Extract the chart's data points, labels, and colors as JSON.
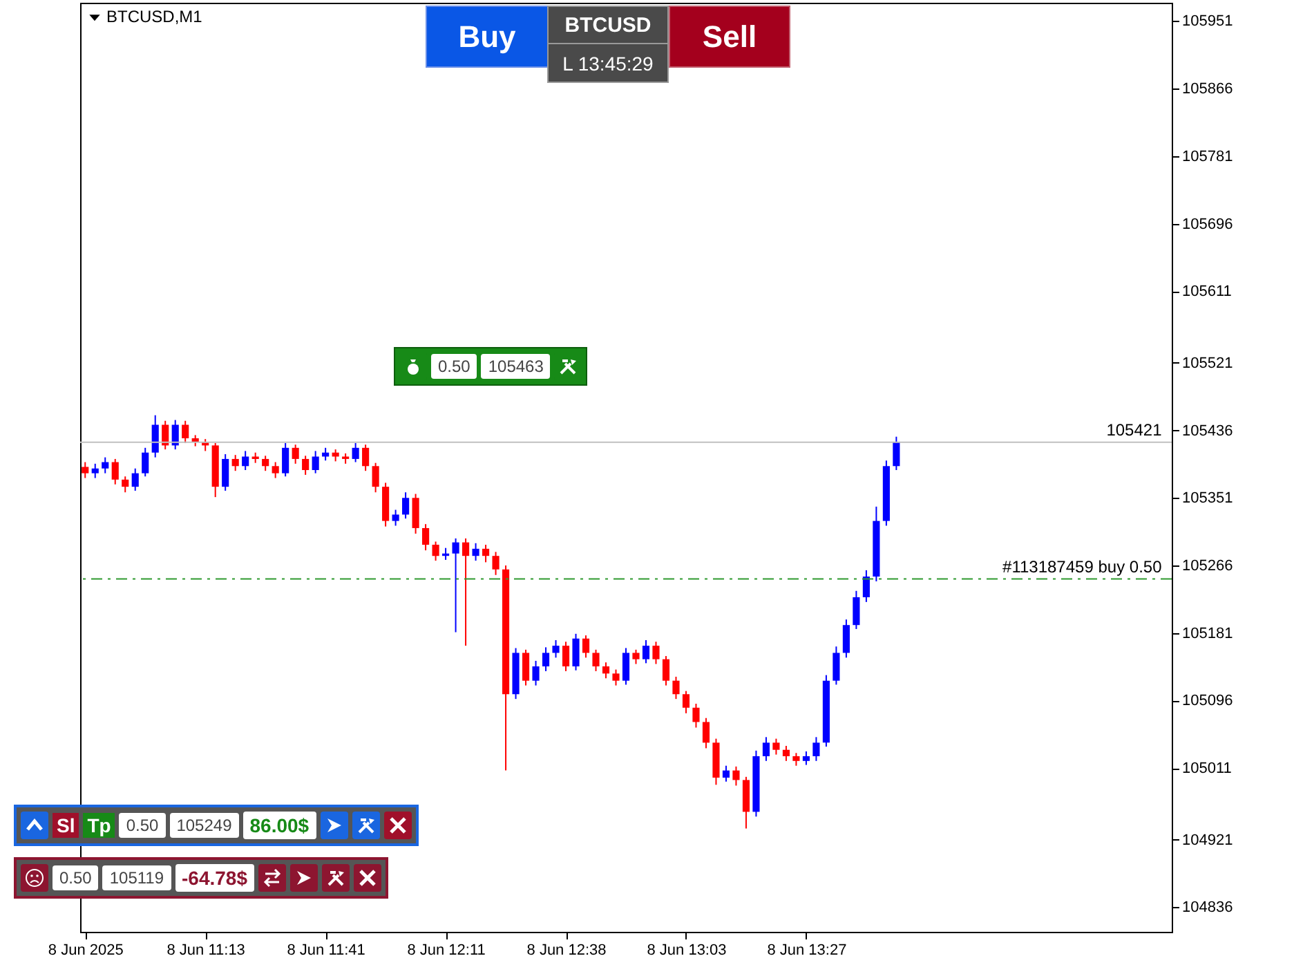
{
  "chart_data": {
    "type": "candlestick",
    "title": "BTCUSD,M1",
    "categories": [
      "8 Jun 2025",
      null,
      null,
      null,
      null,
      null,
      null,
      null,
      null,
      null,
      null,
      null,
      "8 Jun 11:13",
      null,
      null,
      null,
      null,
      null,
      null,
      null,
      null,
      null,
      null,
      null,
      "8 Jun 11:41",
      null,
      null,
      null,
      null,
      null,
      null,
      null,
      null,
      null,
      null,
      null,
      "8 Jun 12:11",
      null,
      null,
      null,
      null,
      null,
      null,
      null,
      null,
      null,
      null,
      null,
      "8 Jun 12:38",
      null,
      null,
      null,
      null,
      null,
      null,
      null,
      null,
      null,
      null,
      null,
      "8 Jun 13:03",
      null,
      null,
      null,
      null,
      null,
      null,
      null,
      null,
      null,
      null,
      null,
      "8 Jun 13:27",
      null,
      null,
      null,
      null,
      null,
      null,
      null,
      null,
      null,
      null,
      null,
      null,
      null,
      null,
      null,
      null,
      null,
      null,
      null,
      null,
      null,
      null,
      null,
      null,
      null,
      null,
      null,
      null,
      null,
      null,
      null,
      null,
      null,
      null,
      null,
      null
    ],
    "ohlc": [
      [
        105390,
        105396,
        105376,
        105382
      ],
      [
        105382,
        105394,
        105376,
        105388
      ],
      [
        105388,
        105402,
        105382,
        105396
      ],
      [
        105396,
        105400,
        105368,
        105374
      ],
      [
        105374,
        105378,
        105358,
        105365
      ],
      [
        105365,
        105388,
        105360,
        105382
      ],
      [
        105382,
        105414,
        105378,
        105408
      ],
      [
        105408,
        105455,
        105402,
        105443
      ],
      [
        105443,
        105448,
        105412,
        105417
      ],
      [
        105417,
        105449,
        105412,
        105443
      ],
      [
        105443,
        105448,
        105420,
        105426
      ],
      [
        105426,
        105430,
        105416,
        105421
      ],
      [
        105421,
        105425,
        105410,
        105417
      ],
      [
        105417,
        105420,
        105352,
        105365
      ],
      [
        105365,
        105406,
        105360,
        105400
      ],
      [
        105400,
        105405,
        105385,
        105391
      ],
      [
        105391,
        105410,
        105386,
        105403
      ],
      [
        105403,
        105408,
        105395,
        105400
      ],
      [
        105400,
        105404,
        105385,
        105391
      ],
      [
        105391,
        105396,
        105376,
        105382
      ],
      [
        105382,
        105420,
        105378,
        105414
      ],
      [
        105414,
        105418,
        105394,
        105400
      ],
      [
        105400,
        105404,
        105380,
        105386
      ],
      [
        105386,
        105410,
        105382,
        105403
      ],
      [
        105403,
        105414,
        105398,
        105408
      ],
      [
        105408,
        105412,
        105397,
        105403
      ],
      [
        105403,
        105407,
        105394,
        105400
      ],
      [
        105400,
        105420,
        105396,
        105414
      ],
      [
        105414,
        105418,
        105385,
        105391
      ],
      [
        105391,
        105395,
        105358,
        105365
      ],
      [
        105365,
        105370,
        105315,
        105322
      ],
      [
        105322,
        105336,
        105316,
        105330
      ],
      [
        105330,
        105358,
        105325,
        105351
      ],
      [
        105351,
        105356,
        105306,
        105313
      ],
      [
        105313,
        105318,
        105285,
        105292
      ],
      [
        105292,
        105296,
        105272,
        105278
      ],
      [
        105278,
        105288,
        105273,
        105281
      ],
      [
        105281,
        105300,
        105182,
        105295
      ],
      [
        105295,
        105300,
        105165,
        105278
      ],
      [
        105278,
        105294,
        105272,
        105287
      ],
      [
        105287,
        105292,
        105270,
        105278
      ],
      [
        105278,
        105283,
        105254,
        105261
      ],
      [
        105261,
        105266,
        105008,
        105104
      ],
      [
        105104,
        105162,
        105098,
        105156
      ],
      [
        105156,
        105160,
        105115,
        105121
      ],
      [
        105121,
        105146,
        105115,
        105139
      ],
      [
        105139,
        105163,
        105133,
        105156
      ],
      [
        105156,
        105172,
        105150,
        105165
      ],
      [
        105165,
        105170,
        105133,
        105139
      ],
      [
        105139,
        105180,
        105134,
        105174
      ],
      [
        105174,
        105178,
        105150,
        105156
      ],
      [
        105156,
        105160,
        105133,
        105139
      ],
      [
        105139,
        105144,
        105124,
        105130
      ],
      [
        105130,
        105135,
        105115,
        105121
      ],
      [
        105121,
        105162,
        105116,
        105156
      ],
      [
        105156,
        105160,
        105142,
        105148
      ],
      [
        105148,
        105172,
        105143,
        105165
      ],
      [
        105165,
        105170,
        105142,
        105148
      ],
      [
        105148,
        105152,
        105115,
        105121
      ],
      [
        105121,
        105126,
        105098,
        105104
      ],
      [
        105104,
        105108,
        105080,
        105087
      ],
      [
        105087,
        105092,
        105062,
        105069
      ],
      [
        105069,
        105074,
        105036,
        105043
      ],
      [
        105043,
        105048,
        104990,
        104999
      ],
      [
        104999,
        105014,
        104994,
        105008
      ],
      [
        105008,
        105013,
        104989,
        104996
      ],
      [
        104996,
        105000,
        104935,
        104956
      ],
      [
        104956,
        105033,
        104950,
        105026
      ],
      [
        105026,
        105050,
        105020,
        105043
      ],
      [
        105043,
        105048,
        105028,
        105034
      ],
      [
        105034,
        105039,
        105020,
        105026
      ],
      [
        105026,
        105030,
        105014,
        105020
      ],
      [
        105020,
        105032,
        105015,
        105026
      ],
      [
        105026,
        105050,
        105020,
        105043
      ],
      [
        105043,
        105128,
        105038,
        105121
      ],
      [
        105121,
        105164,
        105116,
        105156
      ],
      [
        105156,
        105198,
        105150,
        105191
      ],
      [
        105191,
        105234,
        105186,
        105226
      ],
      [
        105226,
        105260,
        105220,
        105252
      ],
      [
        105252,
        105340,
        105246,
        105322
      ],
      [
        105322,
        105398,
        105316,
        105391
      ],
      [
        105391,
        105428,
        105386,
        105421
      ],
      null,
      null,
      null,
      null,
      null,
      null,
      null,
      null,
      null,
      null,
      null,
      null,
      null,
      null,
      null,
      null,
      null,
      null,
      null,
      null,
      null,
      null,
      null,
      null,
      null,
      null,
      null
    ],
    "colors": [
      "#ff0000",
      "#0000ff",
      "#0000ff",
      "#ff0000",
      "#ff0000",
      "#0000ff",
      "#0000ff",
      "#0000ff",
      "#ff0000",
      "#0000ff",
      "#ff0000",
      "#ff0000",
      "#ff0000",
      "#ff0000",
      "#0000ff",
      "#ff0000",
      "#0000ff",
      "#ff0000",
      "#ff0000",
      "#ff0000",
      "#0000ff",
      "#ff0000",
      "#ff0000",
      "#0000ff",
      "#0000ff",
      "#ff0000",
      "#ff0000",
      "#0000ff",
      "#ff0000",
      "#ff0000",
      "#ff0000",
      "#0000ff",
      "#0000ff",
      "#ff0000",
      "#ff0000",
      "#ff0000",
      "#0000ff",
      "#0000ff",
      "#ff0000",
      "#0000ff",
      "#ff0000",
      "#ff0000",
      "#ff0000",
      "#0000ff",
      "#ff0000",
      "#0000ff",
      "#0000ff",
      "#0000ff",
      "#ff0000",
      "#0000ff",
      "#ff0000",
      "#ff0000",
      "#ff0000",
      "#ff0000",
      "#0000ff",
      "#ff0000",
      "#0000ff",
      "#ff0000",
      "#ff0000",
      "#ff0000",
      "#ff0000",
      "#ff0000",
      "#ff0000",
      "#ff0000",
      "#0000ff",
      "#ff0000",
      "#ff0000",
      "#0000ff",
      "#0000ff",
      "#ff0000",
      "#ff0000",
      "#ff0000",
      "#0000ff",
      "#0000ff",
      "#0000ff",
      "#0000ff",
      "#0000ff",
      "#0000ff",
      "#0000ff",
      "#0000ff",
      "#0000ff",
      "#0000ff",
      null,
      null,
      null,
      null,
      null,
      null,
      null,
      null,
      null,
      null,
      null,
      null,
      null,
      null,
      null,
      null,
      null,
      null,
      null,
      null,
      null,
      null,
      null,
      null,
      null,
      null,
      null
    ],
    "ylim": [
      104805,
      105974
    ],
    "yticks": [
      105951,
      105866,
      105781,
      105696,
      105611,
      105521,
      105436,
      105351,
      105266,
      105181,
      105096,
      105011,
      104921,
      104836
    ],
    "ref_lines": [
      {
        "axis": "y",
        "value": 105421,
        "label": "105421",
        "color": "#c0c0c0"
      },
      {
        "axis": "y",
        "value": 105249,
        "label": "#113187459 buy 0.50",
        "color": "#2e9a2e",
        "line_style": "dashed"
      }
    ],
    "annotations": [
      "Buy",
      "Sell",
      "BTCUSD",
      "L 13:45:29",
      "0.50",
      "105463",
      "Sl",
      "Tp",
      "0.50",
      "105249",
      "86.00$",
      "0.50",
      "105119",
      "-64.78$"
    ],
    "grid": false
  }
}
